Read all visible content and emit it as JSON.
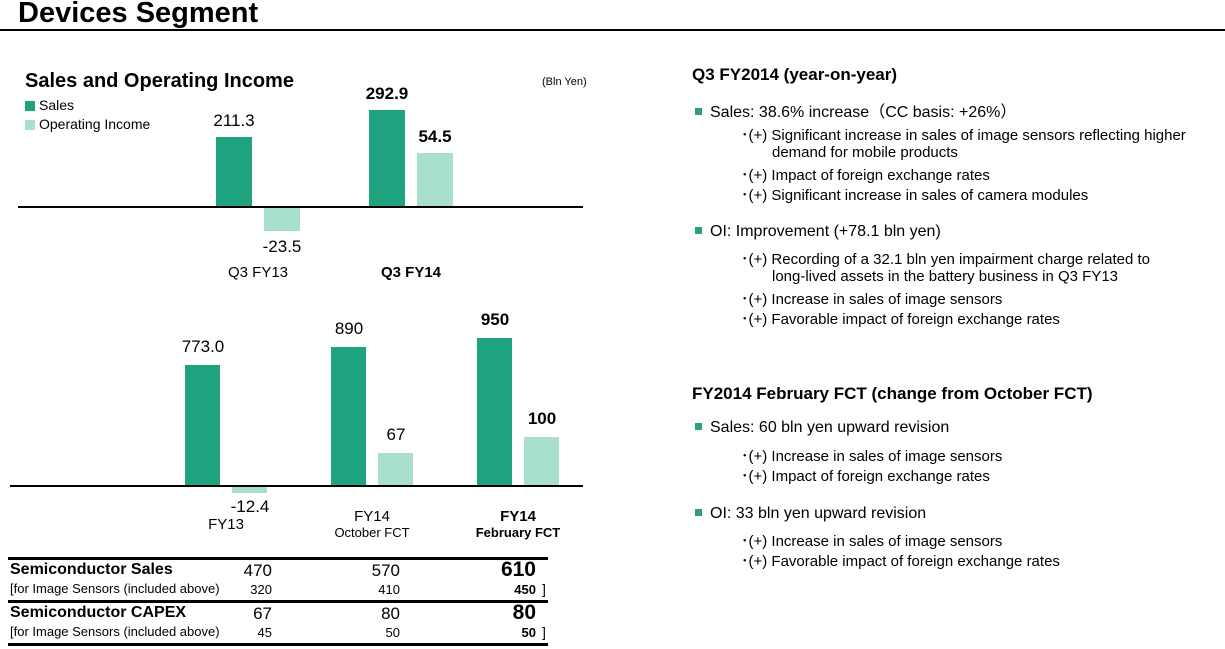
{
  "title": "Devices Segment",
  "colors": {
    "sales": "#1fa37f",
    "operating_income": "#a8e0cd",
    "bullet": "#2e9e7e"
  },
  "chart_data": [
    {
      "type": "bar",
      "title": "Sales and Operating Income",
      "unit": "(Bln Yen)",
      "categories": [
        "Q3 FY13",
        "Q3 FY14"
      ],
      "series": [
        {
          "name": "Sales",
          "values": [
            211.3,
            292.9
          ]
        },
        {
          "name": "Operating Income",
          "values": [
            -23.5,
            54.5
          ]
        }
      ],
      "labels": {
        "sales": [
          "211.3",
          "292.9"
        ],
        "oi": [
          "-23.5",
          "54.5"
        ]
      }
    },
    {
      "type": "bar",
      "categories": [
        "FY13",
        "FY14 October FCT",
        "FY14 February FCT"
      ],
      "category_lines": [
        [
          "FY13",
          ""
        ],
        [
          "FY14",
          "October FCT"
        ],
        [
          "FY14",
          "February FCT"
        ]
      ],
      "series": [
        {
          "name": "Sales",
          "values": [
            773.0,
            890,
            950
          ]
        },
        {
          "name": "Operating Income",
          "values": [
            -12.4,
            67,
            100
          ]
        }
      ],
      "labels": {
        "sales": [
          "773.0",
          "890",
          "950"
        ],
        "oi": [
          "-12.4",
          "67",
          "100"
        ]
      }
    }
  ],
  "table": [
    {
      "label": "Semiconductor Sales",
      "values": [
        "470",
        "570",
        "610"
      ],
      "sub_label": "[for Image Sensors (included above)",
      "sub_values": [
        "320",
        "410",
        "450"
      ]
    },
    {
      "label": "Semiconductor CAPEX",
      "values": [
        "67",
        "80",
        "80"
      ],
      "sub_label": "[for Image Sensors (included above)",
      "sub_values": [
        "45",
        "50",
        "50"
      ]
    }
  ],
  "bracket": "]",
  "right": {
    "q3_title": "Q3 FY2014 (year-on-year)",
    "q3_sales": "Sales: 38.6% increase（CC basis: +26%）",
    "q3_sales_items": [
      "･(+) Significant increase in sales of image sensors reflecting higher",
      "demand for mobile products",
      "･(+) Impact of foreign exchange rates",
      "･(+) Significant increase in sales of camera modules"
    ],
    "q3_oi": "OI: Improvement (+78.1 bln yen)",
    "q3_oi_items": [
      "･(+) Recording of a 32.1 bln yen impairment charge related to",
      "long-lived assets in the battery business in Q3 FY13",
      "･(+) Increase in sales of image sensors",
      "･(+) Favorable impact of foreign exchange rates"
    ],
    "fct_title": "FY2014 February FCT (change from October FCT)",
    "fct_sales": "Sales: 60 bln yen upward revision",
    "fct_sales_items": [
      "･(+) Increase in sales of image sensors",
      "･(+) Impact of foreign exchange rates"
    ],
    "fct_oi": "OI: 33 bln yen upward revision",
    "fct_oi_items": [
      "･(+) Increase in sales of image sensors",
      "･(+) Favorable impact of foreign exchange rates"
    ]
  }
}
